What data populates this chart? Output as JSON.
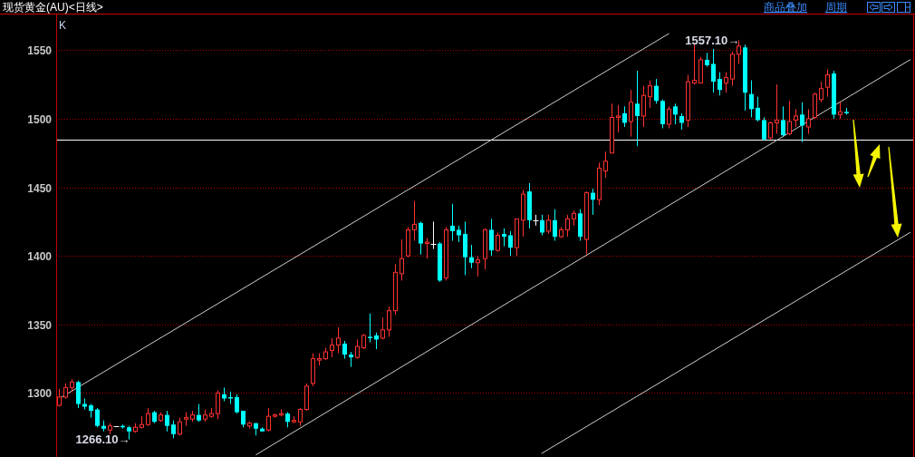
{
  "chart_data": {
    "type": "candlestick",
    "title": "现货黄金(AU)<日线>",
    "categories": [
      null,
      null,
      null,
      null,
      null,
      null,
      null,
      null,
      null,
      null,
      null,
      null,
      null,
      null,
      null,
      null,
      null,
      null,
      null,
      null,
      null,
      null,
      null,
      null,
      null,
      null,
      null,
      null,
      null,
      null,
      null,
      null,
      null,
      null,
      null,
      null,
      null,
      null,
      null,
      null,
      null,
      null,
      null,
      null,
      null,
      null,
      null,
      null,
      null,
      null,
      null,
      null,
      null,
      null,
      null,
      null,
      null,
      null,
      null,
      null,
      null,
      null,
      null,
      null,
      null,
      null,
      null,
      null,
      null,
      null,
      null,
      null,
      null,
      null,
      null,
      null,
      null,
      null,
      null,
      null,
      null,
      null,
      null,
      null,
      null,
      null,
      null,
      null,
      null,
      null,
      null,
      null,
      null,
      null,
      null,
      null,
      null,
      null,
      null,
      null,
      null,
      null,
      null,
      null,
      null,
      null,
      null,
      null,
      null,
      null,
      null,
      null,
      null,
      null,
      null,
      null,
      null,
      null,
      null,
      null,
      null,
      null,
      null,
      null,
      null,
      null,
      null,
      null,
      null,
      null,
      null,
      null,
      null,
      null,
      null
    ],
    "ohlc": [
      [
        1291,
        1303,
        1290,
        1297
      ],
      [
        1297,
        1307,
        1296,
        1304
      ],
      [
        1304,
        1310,
        1301,
        1308
      ],
      [
        1308,
        1309,
        1289,
        1292
      ],
      [
        1292,
        1296,
        1288,
        1290
      ],
      [
        1291,
        1292,
        1282,
        1287
      ],
      [
        1288,
        1289,
        1275,
        1276
      ],
      [
        1276,
        1280,
        1272,
        1274
      ],
      [
        1273,
        1278,
        1270,
        1276
      ],
      [
        1276,
        1276,
        1276,
        1276
      ],
      [
        1276,
        1277,
        1274,
        1275
      ],
      [
        1275,
        1276,
        1266.1,
        1272
      ],
      [
        1272,
        1278,
        1271,
        1275
      ],
      [
        1275,
        1283,
        1274,
        1277
      ],
      [
        1277,
        1289,
        1276,
        1285
      ],
      [
        1286,
        1287,
        1278,
        1279
      ],
      [
        1280,
        1286,
        1279,
        1284
      ],
      [
        1284,
        1287,
        1272,
        1276
      ],
      [
        1277,
        1280,
        1267,
        1270
      ],
      [
        1270,
        1282,
        1269,
        1279
      ],
      [
        1281,
        1286,
        1276,
        1282
      ],
      [
        1281,
        1287,
        1279,
        1284
      ],
      [
        1284,
        1292,
        1279,
        1280
      ],
      [
        1281,
        1288,
        1279,
        1284
      ],
      [
        1283,
        1289,
        1282,
        1285
      ],
      [
        1285,
        1302,
        1281,
        1300
      ],
      [
        1299,
        1304,
        1294,
        1296
      ],
      [
        1297,
        1301,
        1292,
        1296
      ],
      [
        1297,
        1299,
        1285,
        1286
      ],
      [
        1287,
        1287,
        1275,
        1277
      ],
      [
        1276,
        1279,
        1274,
        1278
      ],
      [
        1278,
        1278,
        1269,
        1274
      ],
      [
        1274,
        1275,
        1272,
        1272
      ],
      [
        1273,
        1289,
        1272,
        1283
      ],
      [
        1283,
        1285,
        1282,
        1284
      ],
      [
        1284,
        1288,
        1283,
        1285
      ],
      [
        1285,
        1286,
        1275,
        1279
      ],
      [
        1279,
        1283,
        1278,
        1280
      ],
      [
        1279,
        1289,
        1276,
        1288
      ],
      [
        1288,
        1307,
        1287,
        1305
      ],
      [
        1307,
        1329,
        1305,
        1325
      ],
      [
        1324,
        1329,
        1320,
        1325
      ],
      [
        1325,
        1333,
        1324,
        1330
      ],
      [
        1331,
        1340,
        1326,
        1335
      ],
      [
        1335,
        1348,
        1329,
        1340
      ],
      [
        1336,
        1338,
        1325,
        1328
      ],
      [
        1328,
        1330,
        1319,
        1326
      ],
      [
        1326,
        1339,
        1325,
        1334
      ],
      [
        1333,
        1343,
        1332,
        1342
      ],
      [
        1341,
        1358,
        1337,
        1340
      ],
      [
        1342,
        1344,
        1332,
        1339
      ],
      [
        1340,
        1355,
        1339,
        1346
      ],
      [
        1346,
        1363,
        1341,
        1360
      ],
      [
        1360,
        1394,
        1357,
        1388
      ],
      [
        1387,
        1412,
        1382,
        1398
      ],
      [
        1400,
        1421,
        1399,
        1419
      ],
      [
        1419,
        1440,
        1411,
        1423
      ],
      [
        1424,
        1425,
        1401,
        1409
      ],
      [
        1409,
        1413,
        1398,
        1410
      ],
      [
        1409,
        1425,
        1405,
        1409
      ],
      [
        1409,
        1410,
        1381,
        1382
      ],
      [
        1384,
        1421,
        1382,
        1419
      ],
      [
        1422,
        1438,
        1411,
        1418
      ],
      [
        1419,
        1422,
        1410,
        1415
      ],
      [
        1416,
        1425,
        1386,
        1399
      ],
      [
        1399,
        1408,
        1391,
        1395
      ],
      [
        1395,
        1400,
        1385,
        1397
      ],
      [
        1398,
        1420,
        1390,
        1419
      ],
      [
        1419,
        1427,
        1400,
        1404
      ],
      [
        1404,
        1417,
        1403,
        1415
      ],
      [
        1416,
        1420,
        1407,
        1414
      ],
      [
        1415,
        1418,
        1400,
        1406
      ],
      [
        1406,
        1427,
        1400,
        1427
      ],
      [
        1426,
        1448,
        1414,
        1445
      ],
      [
        1447,
        1453,
        1420,
        1426
      ],
      [
        1426,
        1430,
        1422,
        1426
      ],
      [
        1426,
        1430,
        1415,
        1417
      ],
      [
        1418,
        1430,
        1416,
        1426
      ],
      [
        1426,
        1434,
        1411,
        1414
      ],
      [
        1414,
        1421,
        1413,
        1419
      ],
      [
        1419,
        1430,
        1414,
        1427
      ],
      [
        1427,
        1433,
        1422,
        1431
      ],
      [
        1431,
        1434,
        1411,
        1414
      ],
      [
        1412,
        1447,
        1401,
        1446
      ],
      [
        1446,
        1449,
        1430,
        1441
      ],
      [
        1441,
        1468,
        1437,
        1464
      ],
      [
        1462,
        1476,
        1457,
        1469
      ],
      [
        1475,
        1511,
        1475,
        1501
      ],
      [
        1501,
        1510,
        1490,
        1502
      ],
      [
        1504,
        1509,
        1494,
        1497
      ],
      [
        1498,
        1521,
        1487,
        1512
      ],
      [
        1511,
        1535,
        1480,
        1502
      ],
      [
        1502,
        1524,
        1494,
        1517
      ],
      [
        1516,
        1528,
        1508,
        1524
      ],
      [
        1524,
        1529,
        1511,
        1513
      ],
      [
        1513,
        1514,
        1493,
        1496
      ],
      [
        1496,
        1509,
        1493,
        1507
      ],
      [
        1509,
        1511,
        1496,
        1503
      ],
      [
        1502,
        1504,
        1492,
        1497
      ],
      [
        1499,
        1532,
        1494,
        1527
      ],
      [
        1526,
        1555,
        1525,
        1528
      ],
      [
        1526,
        1545,
        1526,
        1543
      ],
      [
        1543,
        1548,
        1538,
        1539
      ],
      [
        1540,
        1551,
        1519,
        1527
      ],
      [
        1529,
        1534,
        1517,
        1521
      ],
      [
        1526,
        1534,
        1519,
        1530
      ],
      [
        1529,
        1549,
        1524,
        1547
      ],
      [
        1547,
        1557.1,
        1540,
        1553
      ],
      [
        1552,
        1554,
        1506,
        1519
      ],
      [
        1518,
        1528,
        1501,
        1507
      ],
      [
        1508,
        1516,
        1498,
        1499
      ],
      [
        1499,
        1501,
        1484,
        1485
      ],
      [
        1486,
        1498,
        1485,
        1497
      ],
      [
        1497,
        1525,
        1489,
        1499
      ],
      [
        1499,
        1509,
        1487,
        1488
      ],
      [
        1489,
        1513,
        1488,
        1498
      ],
      [
        1499,
        1507,
        1494,
        1502
      ],
      [
        1503,
        1512,
        1483,
        1495
      ],
      [
        1494,
        1507,
        1489,
        1500
      ],
      [
        1501,
        1519,
        1500,
        1518
      ],
      [
        1514,
        1527,
        1512,
        1522
      ],
      [
        1523,
        1536,
        1516,
        1532
      ],
      [
        1533,
        1535,
        1500,
        1503
      ],
      [
        1503,
        1512,
        1500,
        1505
      ],
      [
        1505,
        1508,
        1503,
        1504
      ],
      null,
      null,
      null,
      null,
      null,
      null,
      null,
      null,
      null,
      null
    ],
    "colors": [
      "#ff3232",
      "#ff3232",
      "#ff3232",
      "#00ffff",
      "#00ffff",
      "#00ffff",
      "#00ffff",
      "#00ffff",
      "#ff3232",
      "#ffffff",
      "#00ffff",
      "#00ffff",
      "#ff3232",
      "#ff3232",
      "#ff3232",
      "#00ffff",
      "#ff3232",
      "#00ffff",
      "#00ffff",
      "#ff3232",
      "#ff3232",
      "#ff3232",
      "#00ffff",
      "#ff3232",
      "#ff3232",
      "#ff3232",
      "#00ffff",
      "#00ffff",
      "#00ffff",
      "#00ffff",
      "#ff3232",
      "#00ffff",
      "#00ffff",
      "#ff3232",
      "#ff3232",
      "#ff3232",
      "#00ffff",
      "#ff3232",
      "#ff3232",
      "#ff3232",
      "#ff3232",
      "#ff3232",
      "#ff3232",
      "#ff3232",
      "#ff3232",
      "#00ffff",
      "#00ffff",
      "#ff3232",
      "#ff3232",
      "#00ffff",
      "#00ffff",
      "#ff3232",
      "#ff3232",
      "#ff3232",
      "#ff3232",
      "#ff3232",
      "#ff3232",
      "#00ffff",
      "#ff3232",
      "#ffffff",
      "#00ffff",
      "#ff3232",
      "#00ffff",
      "#00ffff",
      "#00ffff",
      "#00ffff",
      "#ff3232",
      "#ff3232",
      "#00ffff",
      "#ff3232",
      "#00ffff",
      "#00ffff",
      "#ff3232",
      "#ff3232",
      "#00ffff",
      "#ffffff",
      "#00ffff",
      "#ff3232",
      "#00ffff",
      "#ff3232",
      "#ff3232",
      "#ff3232",
      "#00ffff",
      "#ff3232",
      "#00ffff",
      "#ff3232",
      "#ff3232",
      "#ff3232",
      "#ff3232",
      "#00ffff",
      "#ff3232",
      "#00ffff",
      "#ff3232",
      "#ff3232",
      "#00ffff",
      "#00ffff",
      "#ff3232",
      "#00ffff",
      "#00ffff",
      "#ff3232",
      "#ff3232",
      "#ff3232",
      "#00ffff",
      "#00ffff",
      "#00ffff",
      "#ff3232",
      "#ff3232",
      "#ff3232",
      "#00ffff",
      "#00ffff",
      "#00ffff",
      "#00ffff",
      "#ff3232",
      "#ff3232",
      "#00ffff",
      "#ff3232",
      "#ff3232",
      "#00ffff",
      "#ff3232",
      "#ff3232",
      "#ff3232",
      "#ff3232",
      "#00ffff",
      "#ff3232",
      "#00ffff",
      null,
      null,
      null,
      null,
      null,
      null,
      null,
      null,
      null,
      null
    ],
    "series": [
      {
        "type": "line",
        "color": "#d0d0d0",
        "values": [
          1296,
          null,
          null,
          null,
          null,
          null,
          null,
          null,
          null,
          null,
          null,
          null,
          null,
          null,
          null,
          null,
          null,
          null,
          null,
          null,
          null,
          null,
          null,
          null,
          null,
          null,
          null,
          null,
          null,
          null,
          null,
          null,
          null,
          null,
          null,
          null,
          null,
          null,
          null,
          null,
          null,
          null,
          null,
          null,
          null,
          null,
          null,
          null,
          null,
          null,
          null,
          null,
          null,
          null,
          null,
          null,
          null,
          null,
          null,
          null,
          null,
          null,
          null,
          null,
          null,
          null,
          null,
          null,
          null,
          null,
          null,
          null,
          null,
          null,
          null,
          null,
          null,
          null,
          null,
          null,
          null,
          null,
          null,
          null,
          null,
          null,
          null,
          null,
          null,
          null,
          null,
          null,
          null,
          null,
          null,
          null,
          1562,
          null,
          null,
          null,
          null,
          null,
          null,
          null,
          null,
          null,
          null,
          null,
          null,
          null,
          null,
          null,
          null,
          null,
          null,
          null,
          null,
          null,
          null,
          null,
          null,
          null,
          null,
          null,
          null,
          null,
          null,
          null,
          null,
          null,
          null,
          null,
          null,
          null,
          null
        ]
      },
      {
        "type": "line",
        "color": "#d0d0d0",
        "values": [
          null,
          null,
          null,
          null,
          null,
          null,
          null,
          null,
          null,
          null,
          null,
          null,
          null,
          null,
          null,
          null,
          null,
          null,
          null,
          null,
          null,
          null,
          null,
          null,
          null,
          null,
          null,
          null,
          null,
          null,
          null,
          1255,
          null,
          null,
          null,
          null,
          null,
          null,
          null,
          null,
          null,
          null,
          null,
          null,
          null,
          null,
          null,
          null,
          null,
          null,
          null,
          null,
          null,
          null,
          null,
          null,
          null,
          null,
          null,
          null,
          null,
          null,
          null,
          null,
          null,
          null,
          null,
          null,
          null,
          null,
          null,
          null,
          null,
          null,
          null,
          null,
          null,
          null,
          null,
          null,
          null,
          null,
          null,
          null,
          null,
          null,
          null,
          null,
          null,
          null,
          null,
          null,
          null,
          null,
          null,
          null,
          null,
          null,
          null,
          null,
          null,
          null,
          null,
          null,
          null,
          null,
          null,
          null,
          null,
          null,
          null,
          null,
          null,
          null,
          null,
          null,
          null,
          null,
          null,
          null,
          null,
          null,
          null,
          null,
          null,
          null,
          null,
          null,
          null,
          null,
          null,
          null,
          null,
          null,
          1543
        ]
      },
      {
        "type": "line",
        "color": "#d0d0d0",
        "values": [
          null,
          null,
          null,
          null,
          null,
          null,
          null,
          null,
          null,
          null,
          null,
          null,
          null,
          null,
          null,
          null,
          null,
          null,
          null,
          null,
          null,
          null,
          null,
          null,
          null,
          null,
          null,
          null,
          null,
          null,
          null,
          null,
          null,
          null,
          null,
          null,
          null,
          null,
          null,
          null,
          null,
          null,
          null,
          null,
          null,
          null,
          null,
          null,
          null,
          null,
          null,
          null,
          null,
          null,
          null,
          null,
          null,
          null,
          null,
          null,
          null,
          null,
          null,
          null,
          null,
          null,
          null,
          null,
          null,
          null,
          null,
          null,
          null,
          null,
          null,
          null,
          1256,
          null,
          null,
          null,
          null,
          null,
          null,
          null,
          null,
          null,
          null,
          null,
          null,
          null,
          null,
          null,
          null,
          null,
          null,
          null,
          null,
          null,
          null,
          null,
          null,
          null,
          null,
          null,
          null,
          null,
          null,
          null,
          null,
          null,
          null,
          null,
          null,
          null,
          null,
          null,
          null,
          null,
          null,
          null,
          null,
          null,
          null,
          null,
          null,
          null,
          null,
          null,
          null,
          null,
          null,
          null,
          null,
          null,
          1417
        ]
      }
    ],
    "ylim": [
      1254,
      1576
    ],
    "yticks": [
      1300,
      1350,
      1400,
      1450,
      1500,
      1550
    ],
    "grid": "y",
    "tick_labels": "y",
    "ref_lines": [
      {
        "axis": "y",
        "value": 1485,
        "color": "#ffffff"
      }
    ],
    "annotations": [
      "1557.10→",
      "1266.10→",
      "K",
      "商品叠加",
      "周期"
    ]
  }
}
